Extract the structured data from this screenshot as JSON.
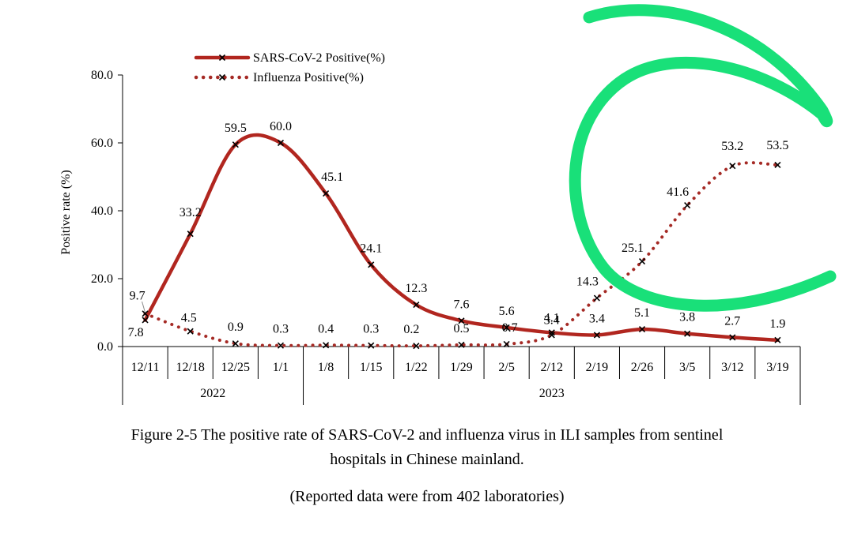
{
  "chart_data": {
    "type": "line",
    "title": "",
    "ylabel": "Positive rate (%)",
    "xlabel": "",
    "ylim": [
      0,
      80
    ],
    "yticks": [
      "0.0",
      "20.0",
      "40.0",
      "60.0",
      "80.0"
    ],
    "categories": [
      "12/11",
      "12/18",
      "12/25",
      "1/1",
      "1/8",
      "1/15",
      "1/22",
      "1/29",
      "2/5",
      "2/12",
      "2/19",
      "2/26",
      "3/5",
      "3/12",
      "3/19"
    ],
    "year_groups": [
      {
        "label": "2022",
        "count": 4
      },
      {
        "label": "2023",
        "count": 11
      }
    ],
    "legend_position": "top-left",
    "series": [
      {
        "name": "SARS-CoV-2 Positive(%)",
        "style": "solid",
        "color": "#b1261f",
        "values": [
          7.8,
          33.2,
          59.5,
          60.0,
          45.1,
          24.1,
          12.3,
          7.6,
          5.6,
          4.1,
          3.4,
          5.1,
          3.8,
          2.7,
          1.9
        ],
        "labels": [
          "7.8",
          "33.2",
          "59.5",
          "60.0",
          "45.1",
          "24.1",
          "12.3",
          "7.6",
          "5.6",
          "4.1",
          "3.4",
          "5.1",
          "3.8",
          "2.7",
          "1.9"
        ]
      },
      {
        "name": "Influenza Positive(%)",
        "style": "dotted",
        "color": "#a52a25",
        "values": [
          9.7,
          4.5,
          0.9,
          0.3,
          0.4,
          0.3,
          0.2,
          0.5,
          0.7,
          3.4,
          14.3,
          25.1,
          41.6,
          53.2,
          53.5
        ],
        "labels": [
          "9.7",
          "4.5",
          "0.9",
          "0.3",
          "0.4",
          "0.3",
          "0.2",
          "0.5",
          "0.7",
          "3.4",
          "14.3",
          "25.1",
          "41.6",
          "53.2",
          "53.5"
        ]
      }
    ],
    "annotation_color": "#19e079"
  },
  "caption": {
    "line1": "Figure 2-5 The positive rate of SARS-CoV-2 and influenza virus in ILI samples from sentinel",
    "line2": "hospitals in Chinese mainland.",
    "line3": "(Reported data were from 402 laboratories)"
  }
}
